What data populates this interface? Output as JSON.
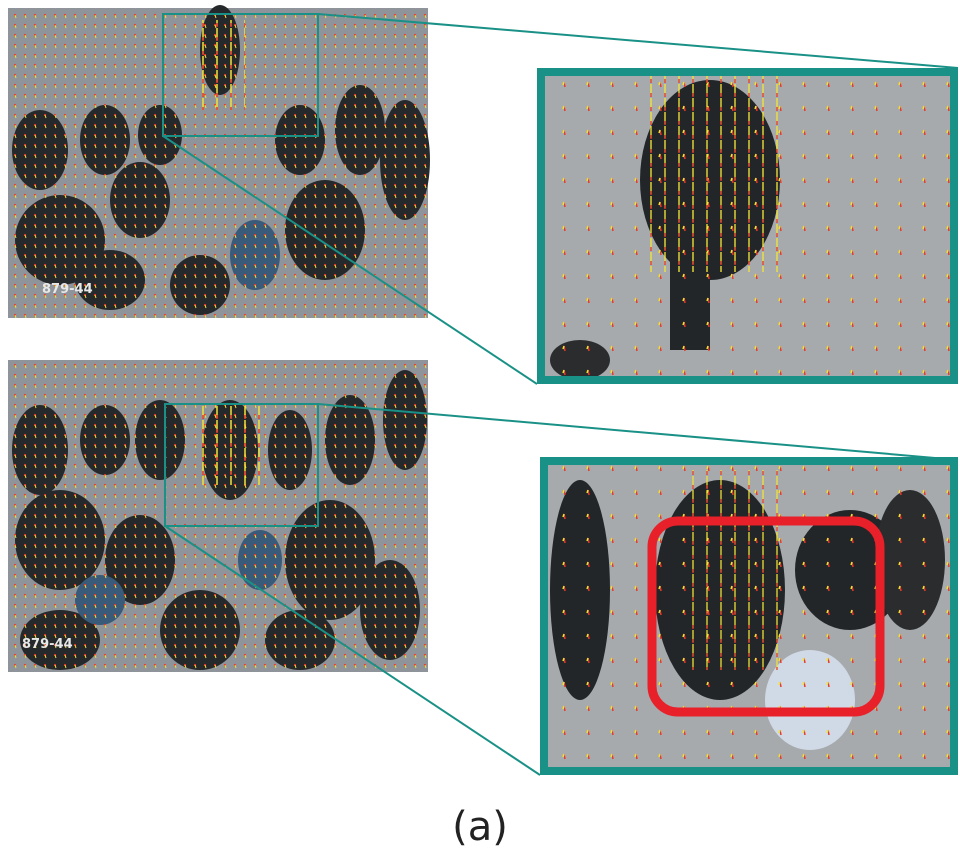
{
  "panels": [
    {
      "frame_label": "879-44"
    },
    {
      "frame_label": "879-44"
    }
  ],
  "caption": "(a)"
}
